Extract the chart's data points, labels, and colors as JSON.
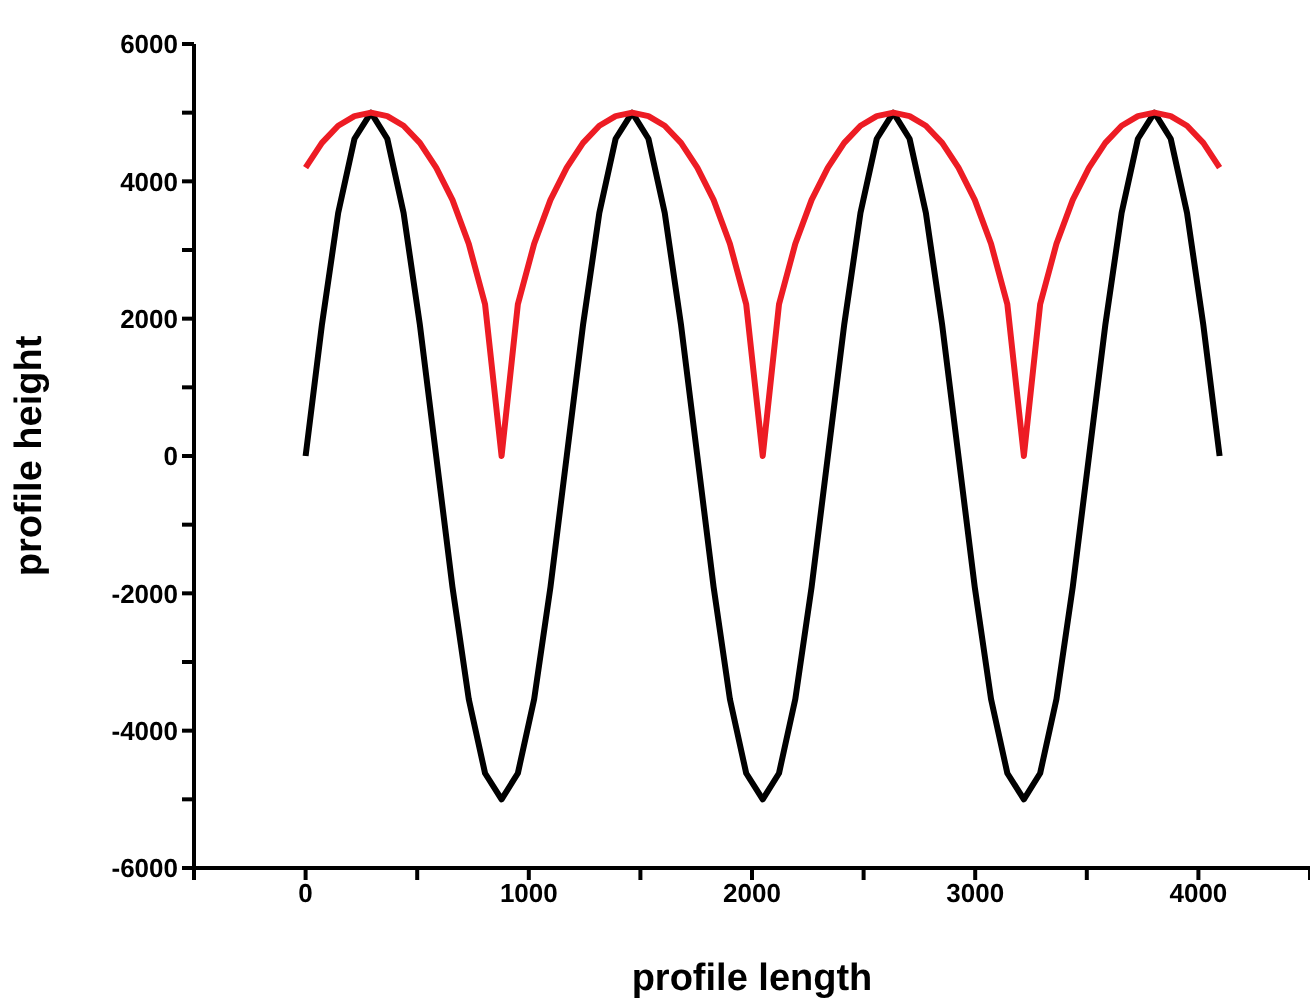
{
  "chart_data": {
    "type": "line",
    "xlabel": "profile length",
    "ylabel": "profile height",
    "x": [
      0,
      73,
      146,
      219,
      293,
      366,
      439,
      512,
      585,
      658,
      731,
      804,
      878,
      951,
      1024,
      1097,
      1170,
      1243,
      1316,
      1389,
      1463,
      1536,
      1609,
      1682,
      1755,
      1828,
      1901,
      1974,
      2048,
      2121,
      2194,
      2267,
      2340,
      2413,
      2486,
      2559,
      2633,
      2706,
      2779,
      2852,
      2925,
      2998,
      3071,
      3144,
      3218,
      3291,
      3364,
      3437,
      3510,
      3583,
      3656,
      3729,
      3803,
      3876,
      3949,
      4022,
      4095
    ],
    "series": [
      {
        "color": "#000000",
        "values": [
          0,
          1910,
          3540,
          4620,
          5000,
          4620,
          3540,
          1910,
          0,
          -1910,
          -3540,
          -4620,
          -5000,
          -4620,
          -3540,
          -1910,
          0,
          1910,
          3540,
          4620,
          5000,
          4620,
          3540,
          1910,
          0,
          -1910,
          -3540,
          -4620,
          -5000,
          -4620,
          -3540,
          -1910,
          0,
          1910,
          3540,
          4620,
          5000,
          4620,
          3540,
          1910,
          0,
          -1910,
          -3540,
          -4620,
          -5000,
          -4620,
          -3540,
          -1910,
          0,
          1910,
          3540,
          4620,
          5000,
          4620,
          3540,
          1910,
          0
        ]
      },
      {
        "color": "#ed1c24",
        "values": [
          4200,
          4560,
          4810,
          4950,
          5000,
          4950,
          4810,
          4560,
          4200,
          3730,
          3090,
          2210,
          0,
          2210,
          3090,
          3730,
          4200,
          4560,
          4810,
          4950,
          5000,
          4950,
          4810,
          4560,
          4200,
          3730,
          3090,
          2210,
          0,
          2210,
          3090,
          3730,
          4200,
          4560,
          4810,
          4950,
          5000,
          4950,
          4810,
          4560,
          4200,
          3730,
          3090,
          2210,
          0,
          2210,
          3090,
          3730,
          4200,
          4560,
          4810,
          4950,
          5000,
          4950,
          4810,
          4560,
          4200
        ]
      }
    ],
    "xlim": [
      -500,
      4500
    ],
    "xticks": [
      {
        "value": -500,
        "label": null
      },
      0,
      {
        "value": 500,
        "label": null
      },
      1000,
      {
        "value": 1500,
        "label": null
      },
      2000,
      {
        "value": 2500,
        "label": null
      },
      3000,
      {
        "value": 3500,
        "label": null
      },
      4000,
      {
        "value": 4500,
        "label": null
      }
    ],
    "ylim": [
      -6000,
      6000
    ],
    "yticks": [
      -6000,
      {
        "value": -5000,
        "label": null
      },
      -4000,
      {
        "value": -3000,
        "label": null
      },
      -2000,
      {
        "value": -1000,
        "label": null
      },
      0,
      {
        "value": 1000,
        "label": null
      },
      2000,
      {
        "value": 3000,
        "label": null
      },
      4000,
      {
        "value": 5000,
        "label": null
      },
      6000
    ],
    "grid": false,
    "legend": false,
    "marker": "none",
    "line_style": "solid"
  }
}
